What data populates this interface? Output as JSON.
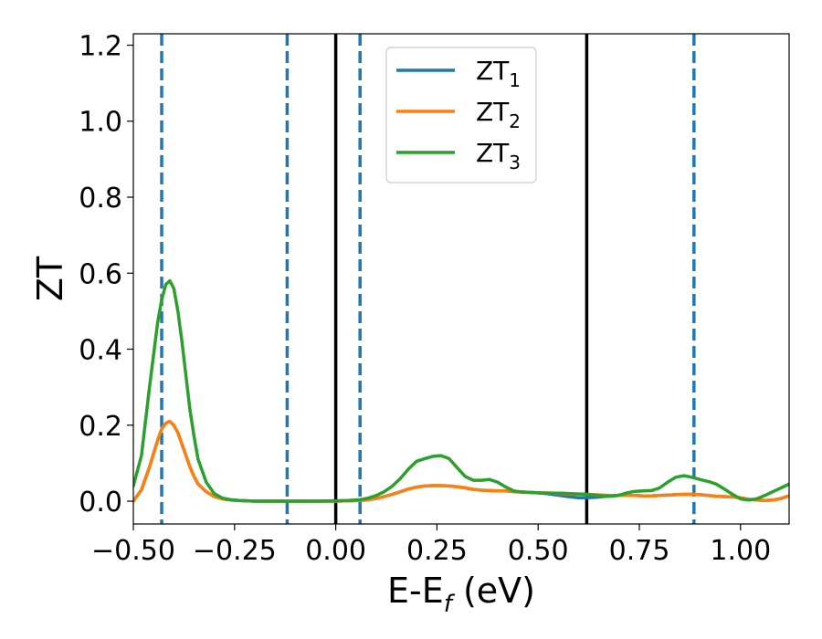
{
  "chart_data": {
    "type": "line",
    "xlabel": {
      "main": "E-E",
      "sub": "f",
      "unit": " (eV)"
    },
    "ylabel": "ZT",
    "xlim": [
      -0.5,
      1.12
    ],
    "ylim": [
      -0.06,
      1.23
    ],
    "xticks": [
      -0.5,
      -0.25,
      0.0,
      0.25,
      0.5,
      0.75,
      1.0
    ],
    "xtick_labels": [
      "−0.50",
      "−0.25",
      "0.00",
      "0.25",
      "0.50",
      "0.75",
      "1.00"
    ],
    "yticks": [
      0.0,
      0.2,
      0.4,
      0.6,
      0.8,
      1.0,
      1.2
    ],
    "ytick_labels": [
      "0.0",
      "0.2",
      "0.4",
      "0.6",
      "0.8",
      "1.0",
      "1.2"
    ],
    "grid": false,
    "legend_position": "top-center",
    "vlines_solid": [
      0.0,
      0.62
    ],
    "vlines_dashed": [
      -0.43,
      -0.12,
      0.06,
      0.885
    ],
    "vline_solid_color": "#000000",
    "vline_dashed_color": "#1f77b4",
    "x": [
      -0.5,
      -0.48,
      -0.46,
      -0.44,
      -0.43,
      -0.42,
      -0.41,
      -0.4,
      -0.39,
      -0.38,
      -0.37,
      -0.36,
      -0.35,
      -0.34,
      -0.32,
      -0.3,
      -0.28,
      -0.26,
      -0.24,
      -0.22,
      -0.2,
      -0.15,
      -0.1,
      -0.05,
      0.0,
      0.03,
      0.06,
      0.08,
      0.1,
      0.12,
      0.14,
      0.16,
      0.18,
      0.2,
      0.22,
      0.24,
      0.26,
      0.28,
      0.3,
      0.32,
      0.34,
      0.36,
      0.38,
      0.4,
      0.42,
      0.44,
      0.46,
      0.48,
      0.5,
      0.52,
      0.54,
      0.56,
      0.58,
      0.6,
      0.62,
      0.64,
      0.66,
      0.68,
      0.7,
      0.72,
      0.74,
      0.76,
      0.78,
      0.8,
      0.82,
      0.84,
      0.86,
      0.88,
      0.9,
      0.92,
      0.94,
      0.96,
      0.98,
      1.0,
      1.02,
      1.04,
      1.06,
      1.08,
      1.1,
      1.12
    ],
    "series": [
      {
        "name": "ZT",
        "sub": "1",
        "color": "#1f77b4",
        "values": [
          0.0,
          0.03,
          0.09,
          0.16,
          0.19,
          0.205,
          0.21,
          0.2,
          0.18,
          0.15,
          0.12,
          0.09,
          0.065,
          0.045,
          0.025,
          0.012,
          0.006,
          0.003,
          0.002,
          0.001,
          0.0,
          0.0,
          0.0,
          0.0,
          0.0,
          0.001,
          0.002,
          0.004,
          0.007,
          0.012,
          0.018,
          0.025,
          0.032,
          0.037,
          0.04,
          0.041,
          0.041,
          0.04,
          0.038,
          0.035,
          0.031,
          0.029,
          0.028,
          0.027,
          0.027,
          0.025,
          0.024,
          0.023,
          0.022,
          0.02,
          0.017,
          0.014,
          0.011,
          0.009,
          0.009,
          0.01,
          0.012,
          0.014,
          0.015,
          0.015,
          0.015,
          0.014,
          0.014,
          0.015,
          0.016,
          0.017,
          0.018,
          0.018,
          0.017,
          0.015,
          0.013,
          0.012,
          0.011,
          0.009,
          0.005,
          0.003,
          0.002,
          0.003,
          0.007,
          0.014
        ]
      },
      {
        "name": "ZT",
        "sub": "2",
        "color": "#ff7f0e",
        "values": [
          0.0,
          0.03,
          0.09,
          0.16,
          0.19,
          0.205,
          0.21,
          0.2,
          0.18,
          0.15,
          0.12,
          0.09,
          0.065,
          0.045,
          0.025,
          0.012,
          0.006,
          0.003,
          0.002,
          0.001,
          0.0,
          0.0,
          0.0,
          0.0,
          0.0,
          0.001,
          0.002,
          0.004,
          0.007,
          0.012,
          0.018,
          0.025,
          0.032,
          0.037,
          0.04,
          0.041,
          0.041,
          0.04,
          0.038,
          0.035,
          0.031,
          0.029,
          0.028,
          0.027,
          0.027,
          0.025,
          0.024,
          0.023,
          0.022,
          0.022,
          0.021,
          0.02,
          0.019,
          0.018,
          0.018,
          0.017,
          0.016,
          0.015,
          0.015,
          0.015,
          0.015,
          0.014,
          0.014,
          0.015,
          0.016,
          0.017,
          0.018,
          0.018,
          0.017,
          0.015,
          0.013,
          0.012,
          0.011,
          0.009,
          0.005,
          0.003,
          0.002,
          0.003,
          0.007,
          0.014
        ]
      },
      {
        "name": "ZT",
        "sub": "3",
        "color": "#2ca02c",
        "values": [
          0.04,
          0.12,
          0.3,
          0.47,
          0.53,
          0.57,
          0.58,
          0.56,
          0.5,
          0.42,
          0.33,
          0.24,
          0.17,
          0.11,
          0.05,
          0.02,
          0.008,
          0.004,
          0.002,
          0.001,
          0.0,
          0.0,
          0.0,
          0.0,
          0.001,
          0.002,
          0.004,
          0.008,
          0.015,
          0.025,
          0.04,
          0.06,
          0.085,
          0.105,
          0.112,
          0.118,
          0.12,
          0.112,
          0.088,
          0.065,
          0.055,
          0.055,
          0.057,
          0.05,
          0.037,
          0.027,
          0.024,
          0.023,
          0.022,
          0.021,
          0.021,
          0.021,
          0.02,
          0.019,
          0.018,
          0.016,
          0.014,
          0.013,
          0.016,
          0.022,
          0.026,
          0.027,
          0.028,
          0.035,
          0.05,
          0.063,
          0.067,
          0.063,
          0.057,
          0.052,
          0.045,
          0.032,
          0.018,
          0.006,
          0.003,
          0.006,
          0.015,
          0.025,
          0.035,
          0.045
        ]
      }
    ]
  }
}
